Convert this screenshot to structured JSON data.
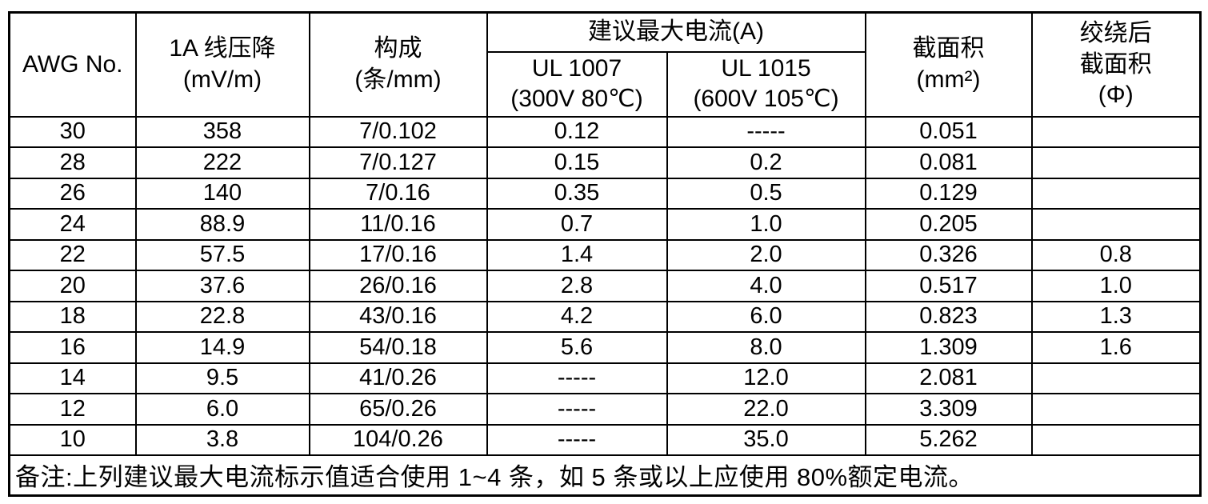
{
  "table": {
    "headers": {
      "awg": "AWG No.",
      "voltage_drop": "1A 线压降\n(mV/m)",
      "construction": "构成\n(条/mm)",
      "max_current_group": "建议最大电流(A)",
      "ul1007": "UL 1007\n(300V 80℃)",
      "ul1015": "UL 1015\n(600V 105℃)",
      "cross_section": "截面积\n(mm²)",
      "twisted_cross_section": "绞绕后\n截面积\n(Φ)"
    },
    "column_keys": [
      "awg",
      "voltage-drop",
      "construction",
      "ul1007",
      "ul1015",
      "cross-section",
      "twisted-cross-section"
    ],
    "rows": [
      [
        "30",
        "358",
        "7/0.102",
        "0.12",
        "-----",
        "0.051",
        ""
      ],
      [
        "28",
        "222",
        "7/0.127",
        "0.15",
        "0.2",
        "0.081",
        ""
      ],
      [
        "26",
        "140",
        "7/0.16",
        "0.35",
        "0.5",
        "0.129",
        ""
      ],
      [
        "24",
        "88.9",
        "11/0.16",
        "0.7",
        "1.0",
        "0.205",
        ""
      ],
      [
        "22",
        "57.5",
        "17/0.16",
        "1.4",
        "2.0",
        "0.326",
        "0.8"
      ],
      [
        "20",
        "37.6",
        "26/0.16",
        "2.8",
        "4.0",
        "0.517",
        "1.0"
      ],
      [
        "18",
        "22.8",
        "43/0.16",
        "4.2",
        "6.0",
        "0.823",
        "1.3"
      ],
      [
        "16",
        "14.9",
        "54/0.18",
        "5.6",
        "8.0",
        "1.309",
        "1.6"
      ],
      [
        "14",
        "9.5",
        "41/0.26",
        "-----",
        "12.0",
        "2.081",
        ""
      ],
      [
        "12",
        "6.0",
        "65/0.26",
        "-----",
        "22.0",
        "3.309",
        ""
      ],
      [
        "10",
        "3.8",
        "104/0.26",
        "-----",
        "35.0",
        "5.262",
        ""
      ]
    ],
    "note": "备注:上列建议最大电流标示值适合使用 1~4 条，如 5 条或以上应使用 80%额定电流。",
    "colors": {
      "border": "#000000",
      "text": "#000000",
      "background": "#ffffff"
    }
  }
}
